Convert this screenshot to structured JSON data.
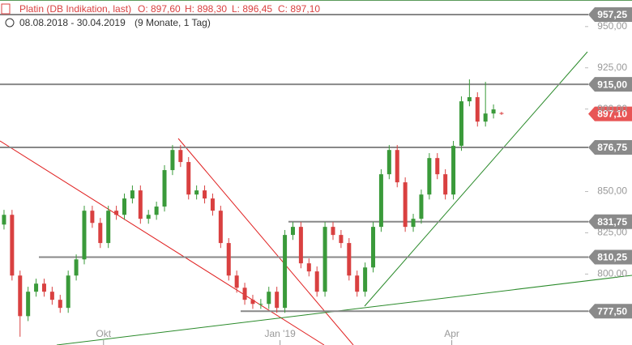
{
  "chart_data": {
    "type": "candlestick",
    "title": "Platin (DB Indikation, last)",
    "ohlc_text": [
      "O: 897,60",
      "H: 898,30",
      "L: 896,45",
      "C: 897,10"
    ],
    "subtitle": "08.08.2018 - 30.04.2019",
    "period": "(9 Monate, 1 Tag)",
    "up_color": "#3a9a3a",
    "down_color": "#d94040",
    "xlim": [
      -0.5,
      72.2
    ],
    "xticks": [
      {
        "value": 12.4,
        "label": "Okt"
      },
      {
        "value": 34.4,
        "label": "Jan '19"
      },
      {
        "value": 55.8,
        "label": "Apr"
      }
    ],
    "ylim": [
      757,
      966.1
    ],
    "yticks": [
      {
        "value": 800,
        "label": "800,00"
      },
      {
        "value": 825,
        "label": "825,00"
      },
      {
        "value": 850,
        "label": "850,00"
      },
      {
        "value": 900,
        "label": "900,00"
      },
      {
        "value": 925,
        "label": "925,00"
      },
      {
        "value": 950,
        "label": "950,00"
      }
    ],
    "levels": [
      {
        "value": 957.25,
        "label": "957,25"
      },
      {
        "value": 915,
        "label": "915,00"
      },
      {
        "value": 876.75,
        "label": "876,75"
      },
      {
        "value": 831.75,
        "label": "831,75"
      },
      {
        "value": 810.25,
        "label": "810,25"
      },
      {
        "value": 777.5,
        "label": "777,50"
      }
    ],
    "last_price": {
      "value": 897.1,
      "label": "897,10"
    },
    "open": [
      830.0,
      835.9,
      799.1,
      774.5,
      789.3,
      794.2,
      789.3,
      784.4,
      779.5,
      799.1,
      808.9,
      838.4,
      831.0,
      818.8,
      838.4,
      835.9,
      845.8,
      850.7,
      833.5,
      835.9,
      840.9,
      863.0,
      875.2,
      867.9,
      848.2,
      850.7,
      845.8,
      838.4,
      818.8,
      799.1,
      791.7,
      784.4,
      781.9,
      781.9,
      789.3,
      779.5,
      823.7,
      828.6,
      806.5,
      801.6,
      789.3,
      828.6,
      823.7,
      818.8,
      799.1,
      789.3,
      804.0,
      828.6,
      860.5,
      875.2,
      855.6,
      828.6,
      833.5,
      848.2,
      870.3,
      860.5,
      848.2,
      877.7,
      904.7,
      907.2,
      892.4,
      897.3,
      897.6
    ],
    "high": [
      838.9,
      838.9,
      802.1,
      792.3,
      797.2,
      797.2,
      792.3,
      787.4,
      802.1,
      811.9,
      841.4,
      841.4,
      834.0,
      841.4,
      841.4,
      848.8,
      853.7,
      853.7,
      838.9,
      843.9,
      866.0,
      878.2,
      878.2,
      870.9,
      853.7,
      853.7,
      848.8,
      841.4,
      821.8,
      802.1,
      794.7,
      787.4,
      784.9,
      792.3,
      792.3,
      826.7,
      831.6,
      831.6,
      809.5,
      804.6,
      831.6,
      831.6,
      826.7,
      821.8,
      802.1,
      807.0,
      831.6,
      863.5,
      878.2,
      878.2,
      858.6,
      836.5,
      851.2,
      873.3,
      873.3,
      863.5,
      880.7,
      907.7,
      918.0,
      910.2,
      916.5,
      902.8,
      898.3
    ],
    "low": [
      827.0,
      796.1,
      762.0,
      771.5,
      786.3,
      786.3,
      781.4,
      776.5,
      776.5,
      796.1,
      805.9,
      828.0,
      815.8,
      815.8,
      832.9,
      832.9,
      842.8,
      830.5,
      830.5,
      832.9,
      837.9,
      860.0,
      864.9,
      845.2,
      845.2,
      842.8,
      835.4,
      815.8,
      796.1,
      788.7,
      781.4,
      778.9,
      778.9,
      778.9,
      776.5,
      776.5,
      820.7,
      803.5,
      798.6,
      786.3,
      786.3,
      820.7,
      815.8,
      796.1,
      786.3,
      786.3,
      801.0,
      825.6,
      857.5,
      852.6,
      825.6,
      825.6,
      830.5,
      845.2,
      857.5,
      845.2,
      845.2,
      874.7,
      901.7,
      889.4,
      889.4,
      894.3,
      896.45
    ],
    "close": [
      835.9,
      799.1,
      774.5,
      789.3,
      794.2,
      789.3,
      784.4,
      779.5,
      799.1,
      808.9,
      838.4,
      831.0,
      818.8,
      838.4,
      835.9,
      845.8,
      850.7,
      833.5,
      835.9,
      840.9,
      863.0,
      875.2,
      867.9,
      848.2,
      850.7,
      845.8,
      838.4,
      818.8,
      799.1,
      791.7,
      784.4,
      781.9,
      781.9,
      789.3,
      779.5,
      823.7,
      828.6,
      806.5,
      801.6,
      789.3,
      828.6,
      823.7,
      818.8,
      799.1,
      789.3,
      804.0,
      828.6,
      860.5,
      875.2,
      855.6,
      828.6,
      833.5,
      848.2,
      870.3,
      860.5,
      848.2,
      877.7,
      904.7,
      907.2,
      892.4,
      897.3,
      899.8,
      897.1
    ]
  }
}
